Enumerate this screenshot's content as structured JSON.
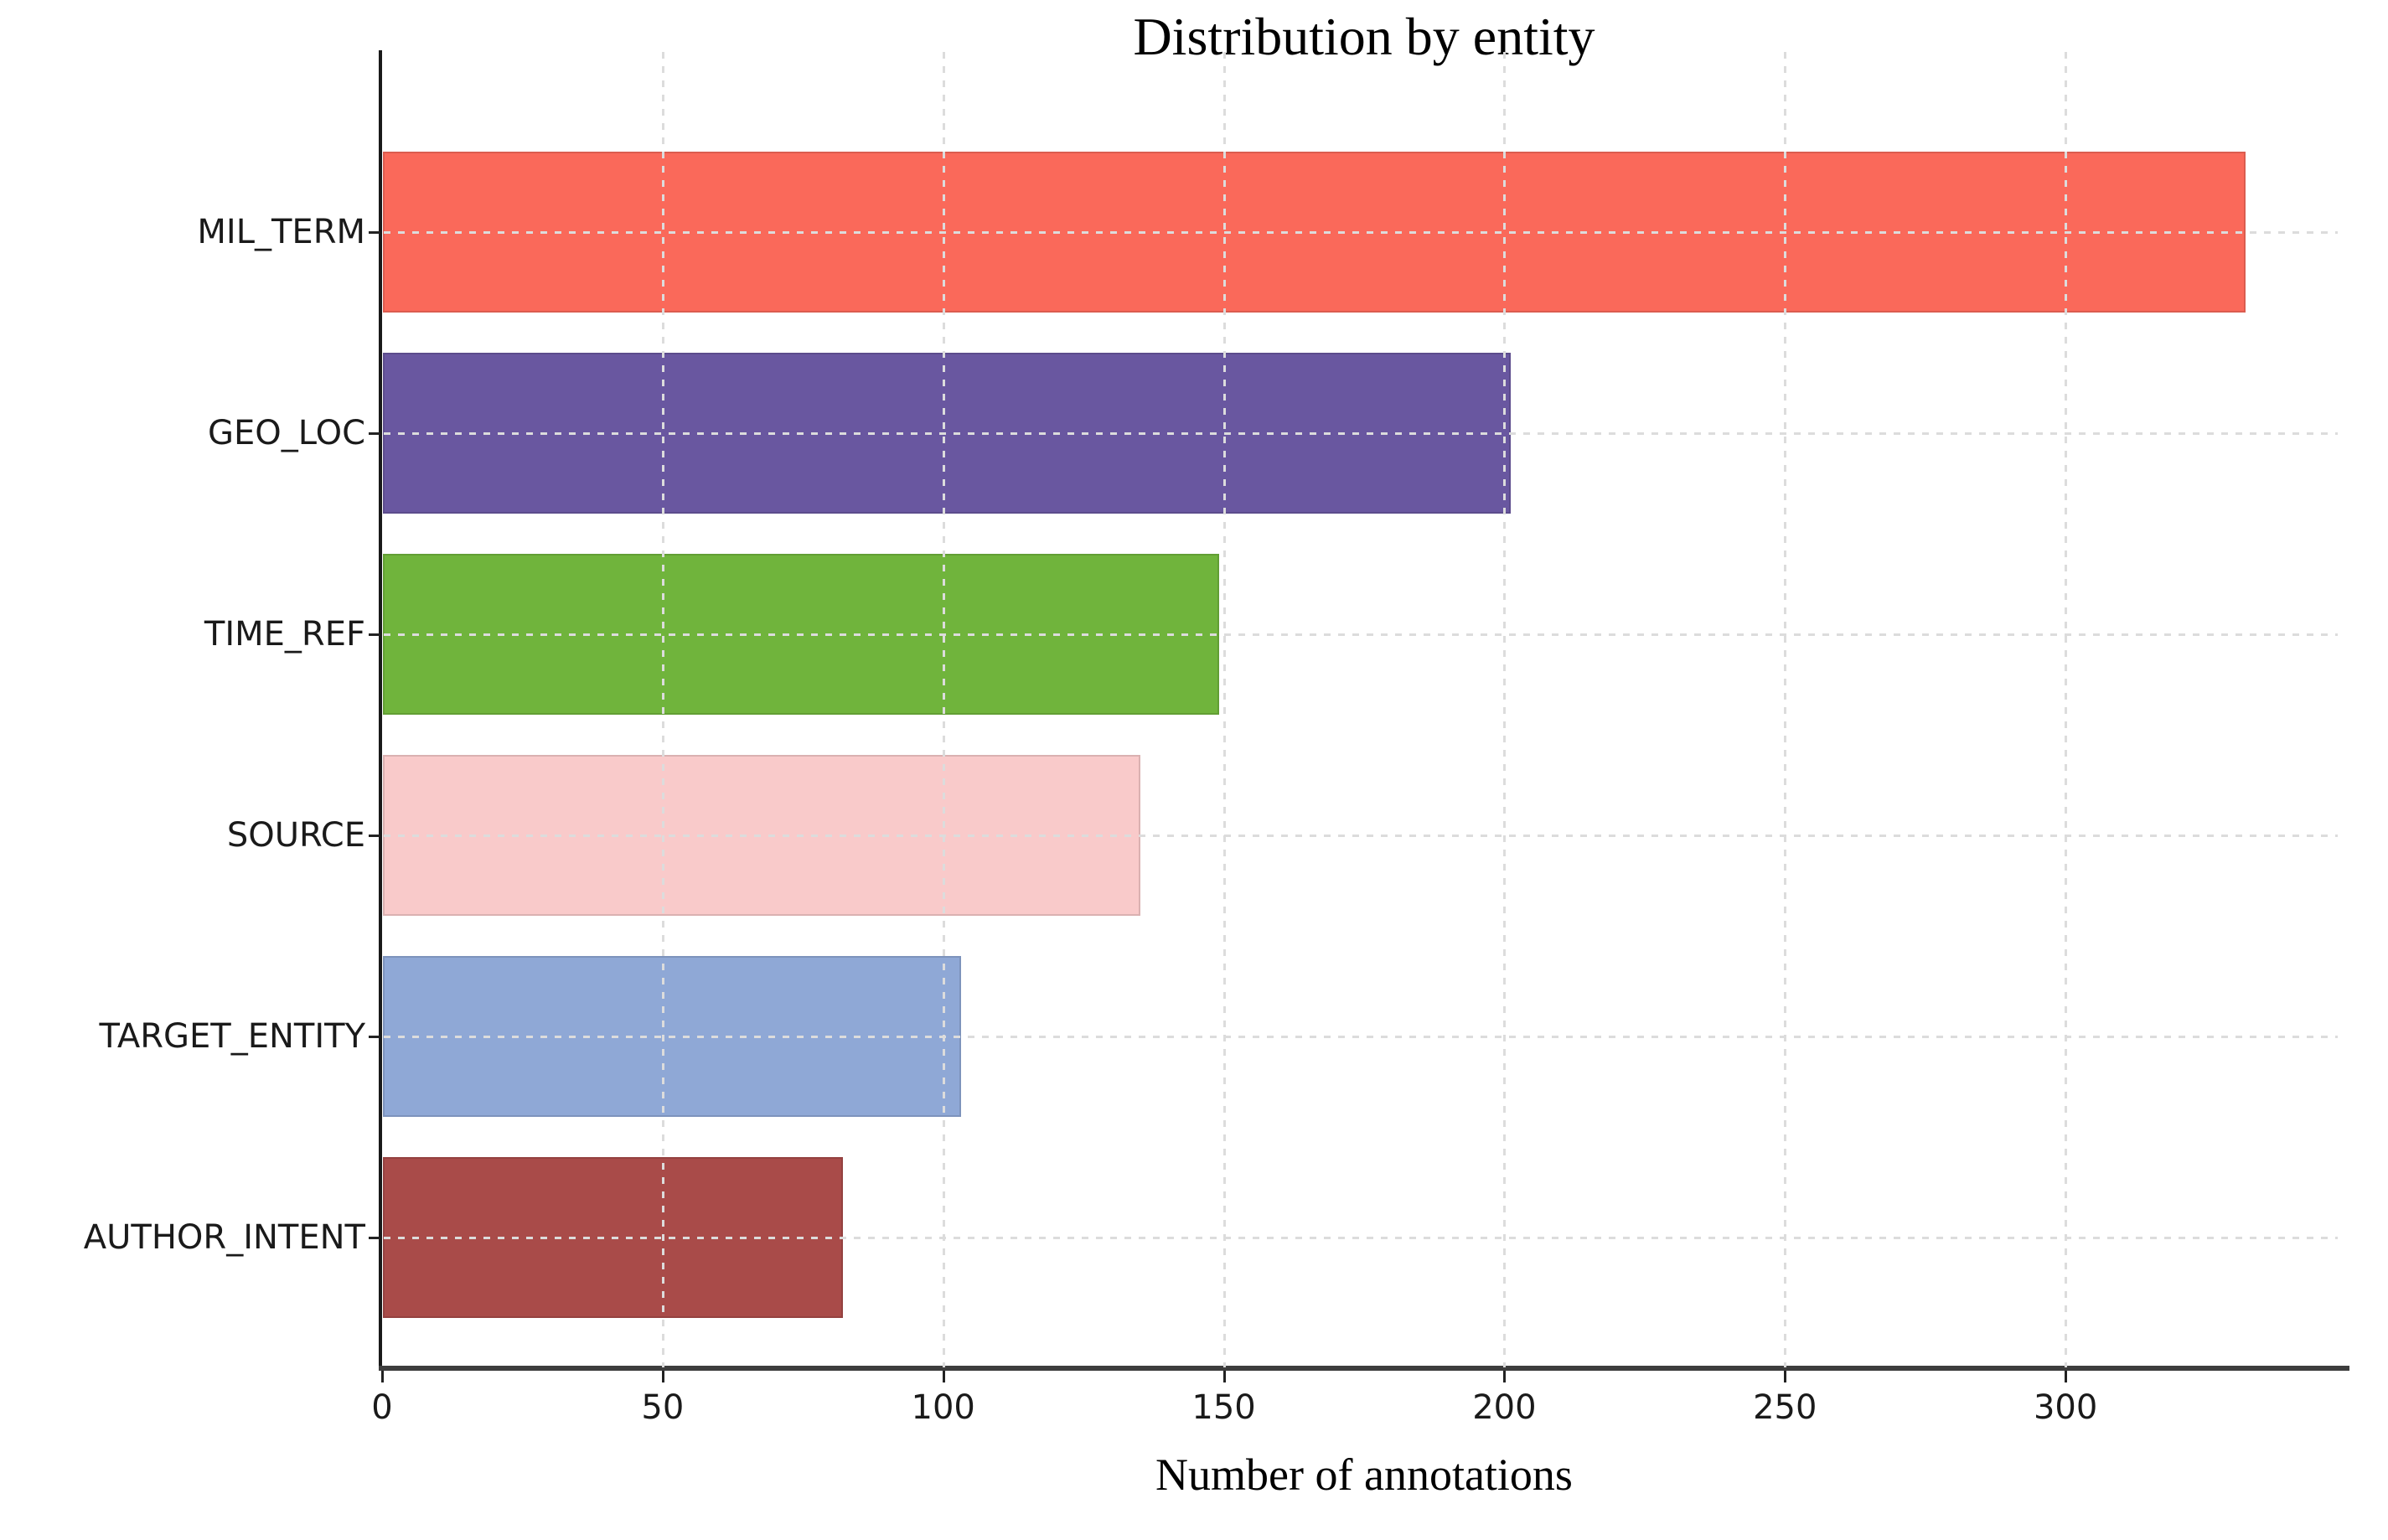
{
  "chart_data": {
    "type": "bar",
    "orientation": "horizontal",
    "title": "Distribution by entity",
    "xlabel": "Number of annotations",
    "ylabel": "",
    "categories": [
      "MIL_TERM",
      "GEO_LOC",
      "TIME_REF",
      "SOURCE",
      "TARGET_ENTITY",
      "AUTHOR_INTENT"
    ],
    "values": [
      332,
      201,
      149,
      135,
      103,
      82
    ],
    "bar_colors": [
      "#FA695A",
      "#6957A0",
      "#70B43C",
      "#F9CACA",
      "#8FA8D6",
      "#A94B49"
    ],
    "xlim": [
      0,
      350
    ],
    "xticks": [
      0,
      50,
      100,
      150,
      200,
      250,
      300
    ],
    "grid": "dashed gridlines on both axes, drawn above bars",
    "legend": "none",
    "background_color": "#ffffff",
    "spine_color": "#2a2a2a"
  }
}
